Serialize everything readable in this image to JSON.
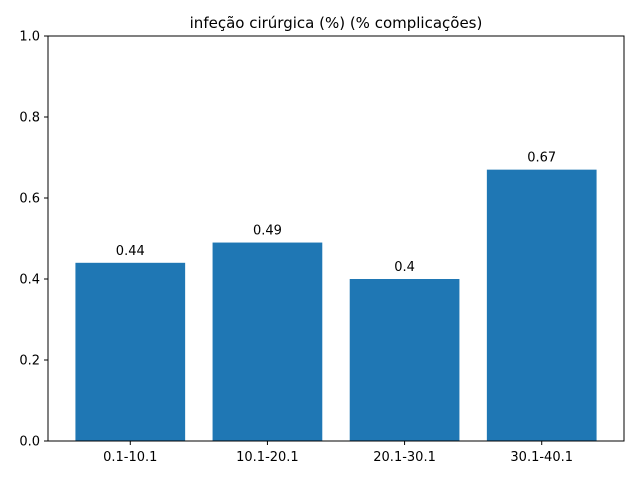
{
  "chart_data": {
    "type": "bar",
    "title": "infeção cirúrgica (%) (% complicações)",
    "xlabel": "",
    "ylabel": "",
    "categories": [
      "0.1-10.1",
      "10.1-20.1",
      "20.1-30.1",
      "30.1-40.1"
    ],
    "values": [
      0.44,
      0.49,
      0.4,
      0.67
    ],
    "value_labels": [
      "0.44",
      "0.49",
      "0.4",
      "0.67"
    ],
    "ylim": [
      0,
      1
    ],
    "yticks": [
      0.0,
      0.2,
      0.4,
      0.6,
      0.8,
      1.0
    ],
    "ytick_labels": [
      "0.0",
      "0.2",
      "0.4",
      "0.6",
      "0.8",
      "1.0"
    ],
    "grid": false,
    "legend": "none",
    "bar_color": "#1f77b4"
  }
}
